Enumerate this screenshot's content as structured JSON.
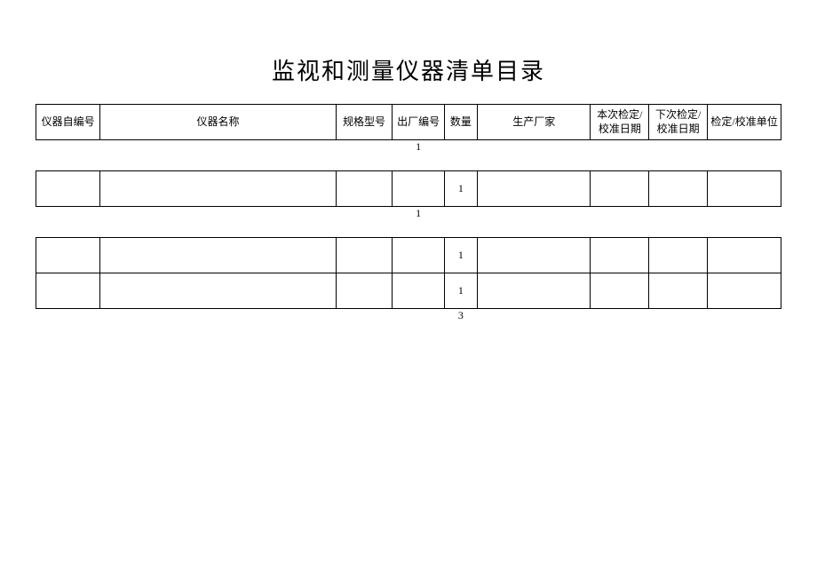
{
  "title": "监视和测量仪器清单目录",
  "columns": {
    "id": "仪器自编号",
    "name": "仪器名称",
    "spec": "规格型号",
    "factory_no": "出厂编号",
    "qty": "数量",
    "mfr": "生产厂家",
    "this_date": "本次检定/校准日期",
    "next_date": "下次检定/校准日期",
    "unit": "检定/校准单位"
  },
  "sections": [
    {
      "footer_label": "1",
      "rows": []
    },
    {
      "footer_label": "1",
      "rows": [
        {
          "id": "",
          "name": "",
          "spec": "",
          "factory_no": "",
          "qty": "1",
          "mfr": "",
          "this_date": "",
          "next_date": "",
          "unit": ""
        }
      ]
    },
    {
      "footer_label": "3",
      "rows": [
        {
          "id": "",
          "name": "",
          "spec": "",
          "factory_no": "",
          "qty": "1",
          "mfr": "",
          "this_date": "",
          "next_date": "",
          "unit": ""
        },
        {
          "id": "",
          "name": "",
          "spec": "",
          "factory_no": "",
          "qty": "1",
          "mfr": "",
          "this_date": "",
          "next_date": "",
          "unit": ""
        }
      ]
    }
  ],
  "styling": {
    "title_fontsize": 26,
    "cell_fontsize": 12,
    "border_color": "#000000",
    "background_color": "#ffffff",
    "font_family": "SimSun"
  }
}
